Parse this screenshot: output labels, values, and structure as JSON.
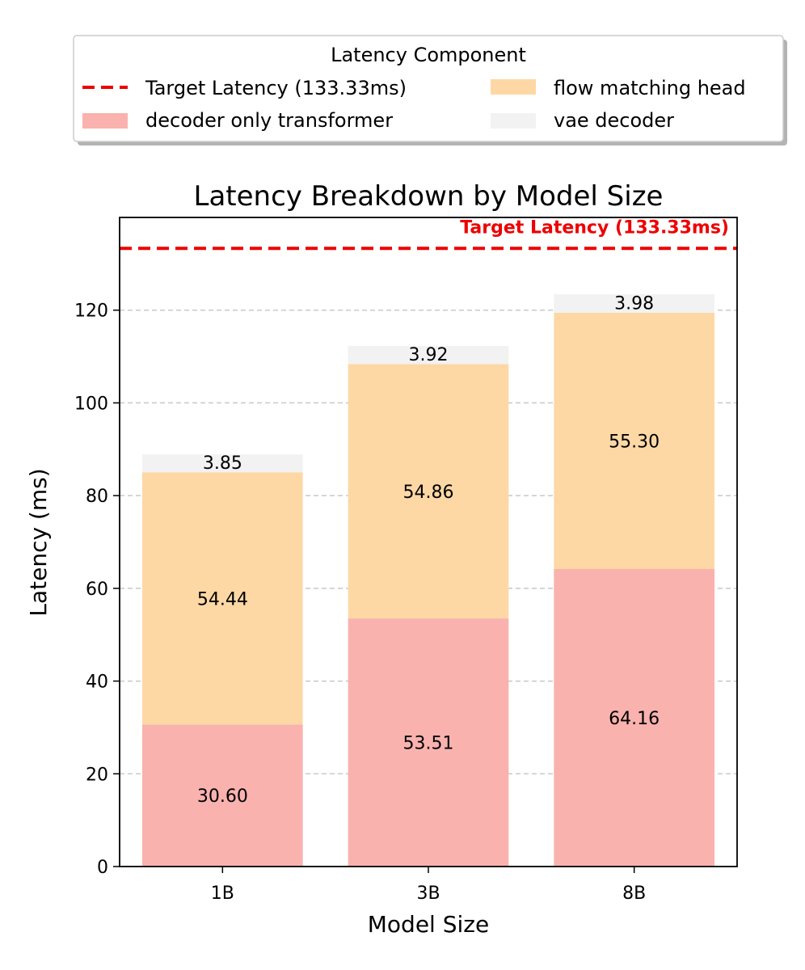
{
  "chart_data": {
    "type": "bar",
    "stacked": true,
    "title": "Latency Breakdown by Model Size",
    "xlabel": "Model Size",
    "ylabel": "Latency (ms)",
    "categories": [
      "1B",
      "3B",
      "8B"
    ],
    "ylim": [
      0,
      140
    ],
    "yticks": [
      0,
      20,
      40,
      60,
      80,
      100,
      120
    ],
    "grid": "y-dashed",
    "series": [
      {
        "name": "decoder only transformer",
        "values": [
          30.6,
          53.51,
          64.16
        ],
        "labels": [
          "30.60",
          "53.51",
          "64.16"
        ],
        "color": "#f9b2ae"
      },
      {
        "name": "flow matching head",
        "values": [
          54.44,
          54.86,
          55.3
        ],
        "labels": [
          "54.44",
          "54.86",
          "55.30"
        ],
        "color": "#fdd8a5"
      },
      {
        "name": "vae decoder",
        "values": [
          3.85,
          3.92,
          3.98
        ],
        "labels": [
          "3.85",
          "3.92",
          "3.98"
        ],
        "color": "#f2f2f2"
      }
    ],
    "reference_line": {
      "name": "Target Latency (133.33ms)",
      "value": 133.33,
      "label": "Target Latency (133.33ms)",
      "color": "#ee0000",
      "style": "dashed"
    },
    "legend": {
      "title": "Latency Component",
      "placement": "top-center"
    }
  }
}
